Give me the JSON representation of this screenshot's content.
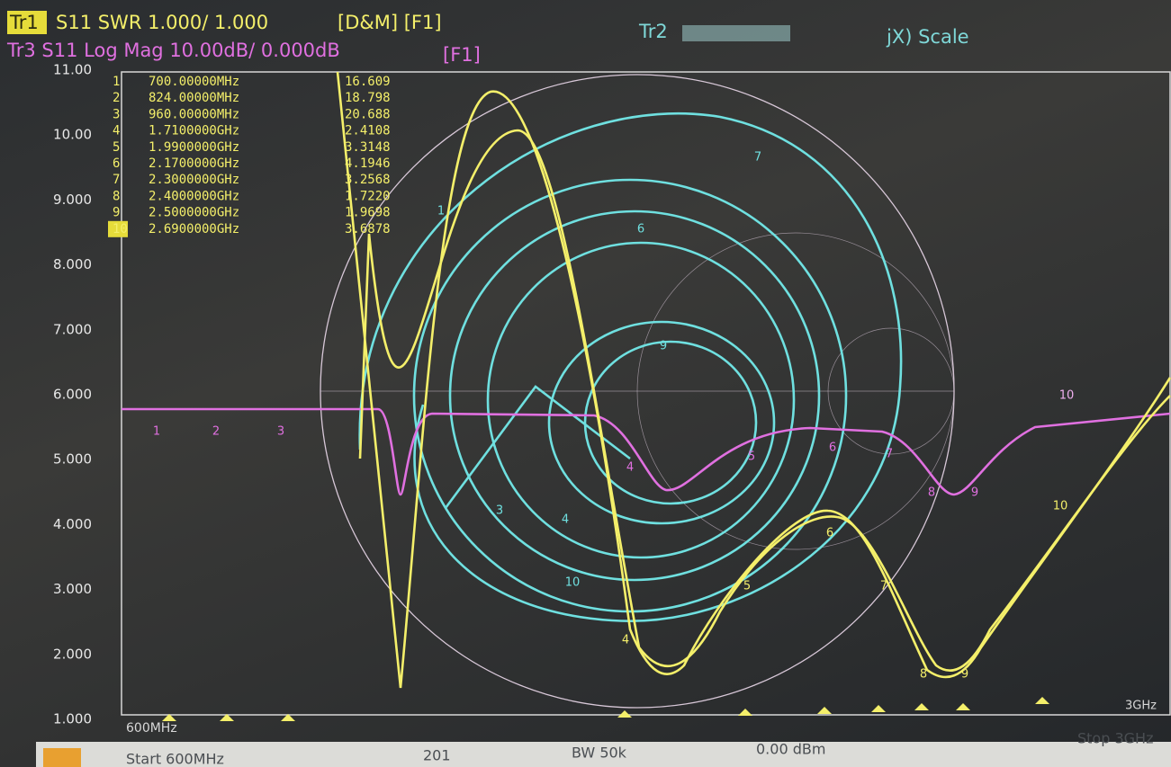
{
  "header": {
    "tr1": "Tr1",
    "tr1_text": "S11 SWR 1.000/ 1.000",
    "tr1_flags": "[D&M] [F1]",
    "tr3_text": "Tr3 S11 Log Mag 10.00dB/ 0.000dB",
    "tr3_flags": "[F1]",
    "tr2": "Tr2",
    "tr2_text": "jX) Scale"
  },
  "markers": {
    "rows": [
      [
        "1",
        "700.00000MHz",
        "16.609"
      ],
      [
        "2",
        "824.00000MHz",
        "18.798"
      ],
      [
        "3",
        "960.00000MHz",
        "20.688"
      ],
      [
        "4",
        "1.7100000GHz",
        "2.4108"
      ],
      [
        "5",
        "1.9900000GHz",
        "3.3148"
      ],
      [
        "6",
        "2.1700000GHz",
        "4.1946"
      ],
      [
        "7",
        "2.3000000GHz",
        "3.2568"
      ],
      [
        "8",
        "2.4000000GHz",
        "1.7220"
      ],
      [
        "9",
        "2.5000000GHz",
        "1.9698"
      ],
      [
        "10",
        "2.6900000GHz",
        "3.6878"
      ]
    ]
  },
  "axis": {
    "y_labels": [
      "11.00",
      "10.00",
      "9.000",
      "8.000",
      "7.000",
      "6.000",
      "5.000",
      "4.000",
      "3.000",
      "2.000",
      "1.000"
    ],
    "x_start": "600MHz",
    "x_stop": "3GHz"
  },
  "footer": {
    "start": "Start 600MHz",
    "points": "201",
    "bw": "BW 50k",
    "power": "0.00 dBm",
    "stop": "Stop 3GHz"
  }
}
